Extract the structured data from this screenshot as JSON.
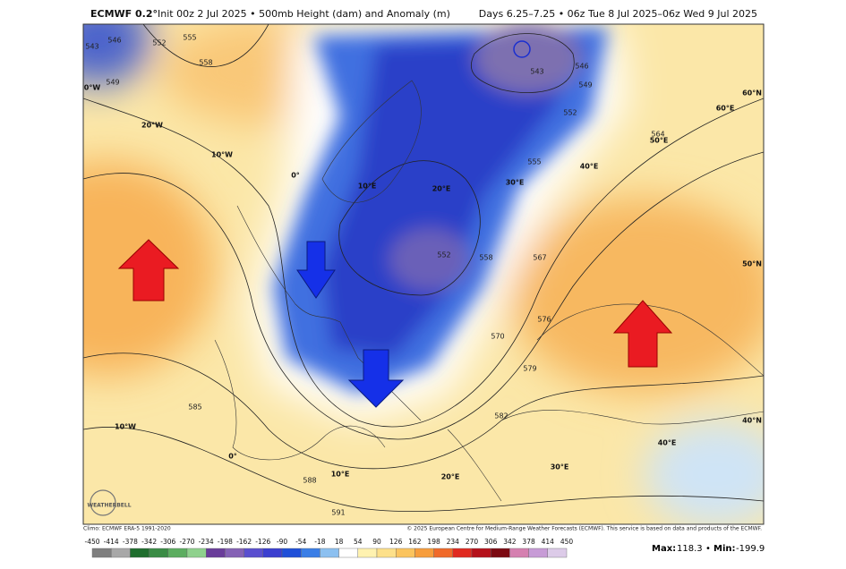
{
  "header": {
    "model": "ECMWF 0.2°",
    "title": "Init 00z 2 Jul 2025 • 500mb Height (dam) and Anomaly (m)",
    "valid": "Days 6.25–7.25 • 06z Tue 8 Jul 2025–06z Wed 9 Jul 2025"
  },
  "map": {
    "contour_labels": [
      "543",
      "546",
      "549",
      "552",
      "555",
      "558",
      "543",
      "546",
      "549",
      "552",
      "555",
      "564",
      "552",
      "558",
      "567",
      "570",
      "576",
      "579",
      "582",
      "585",
      "588",
      "591"
    ],
    "graticule_labels": [
      "0°W",
      "20°W",
      "10°W",
      "0°",
      "10°E",
      "20°E",
      "30°E",
      "40°E",
      "50°E",
      "60°E",
      "60°N",
      "50°N",
      "40°N",
      "10°W",
      "0°",
      "10°E",
      "20°E",
      "30°E",
      "40°E"
    ],
    "logo": "WEATHERBELL"
  },
  "footer": {
    "climo": "Climo: ECMWF ERA-5 1991-2020",
    "copyright": "© 2025 European Centre for Medium-Range Weather Forecasts (ECMWF). This service is based on data and products of the ECMWF.",
    "colorbar": {
      "labels": [
        -450,
        -414,
        -378,
        -342,
        -306,
        -270,
        -234,
        -198,
        -162,
        -126,
        -90,
        -54,
        -18,
        18,
        54,
        90,
        126,
        162,
        198,
        234,
        270,
        306,
        342,
        378,
        414,
        450
      ],
      "colors": [
        "#7f7f7f",
        "#a8a8a8",
        "#1f6e2e",
        "#3a8c45",
        "#5cad60",
        "#8fd18d",
        "#6a3d9a",
        "#8562b5",
        "#5a4fcf",
        "#3b3fd0",
        "#1f4fd8",
        "#3a7ee6",
        "#8cc0f0",
        "#ffffff",
        "#fff2b0",
        "#fde08a",
        "#fbc45e",
        "#f79d3c",
        "#f06a2a",
        "#e02a20",
        "#b5121b",
        "#7c0a12",
        "#d580b0",
        "#c79bd6",
        "#dccbe8"
      ]
    },
    "max_label": "Max:",
    "max_value": "118.3",
    "sep": "•",
    "min_label": "Min:",
    "min_value": "-199.9"
  }
}
